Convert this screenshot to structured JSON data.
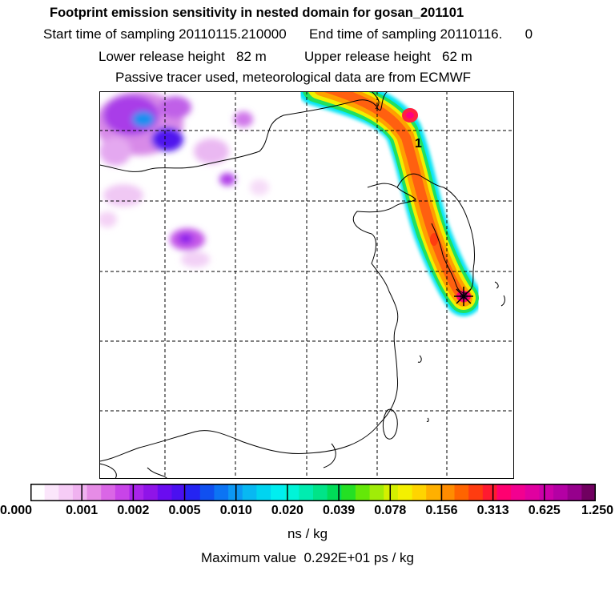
{
  "header": {
    "title": "Footprint emission sensitivity in nested domain for gosan_201101",
    "sampling": "Start time of sampling 20110115.210000      End time of sampling 20110116.      0",
    "release": "Lower release height   82 m          Upper release height   62 m",
    "tracer": "Passive tracer used, meteorological data are from ECMWF"
  },
  "map": {
    "plume_label": "1",
    "release_marker": "asterisk-icon",
    "grid": true
  },
  "colorbar": {
    "tick_labels": [
      "0.000",
      "0.001",
      "0.002",
      "0.005",
      "0.010",
      "0.020",
      "0.039",
      "0.078",
      "0.156",
      "0.313",
      "0.625",
      "1.250"
    ],
    "colors": [
      "#ffffff",
      "#fbe6fb",
      "#f6ccf6",
      "#f0b2f0",
      "#e68ce6",
      "#da66e6",
      "#c844e8",
      "#a924ea",
      "#8f14e8",
      "#6a0cf0",
      "#4a10f0",
      "#2424f2",
      "#1050f0",
      "#0c74f4",
      "#0c98f4",
      "#08b8f2",
      "#00d4f0",
      "#00eef0",
      "#00f4d8",
      "#00ecb0",
      "#00e488",
      "#00dc58",
      "#24e024",
      "#64e808",
      "#a0ec08",
      "#d4f000",
      "#f4f000",
      "#ffd400",
      "#ffb000",
      "#ff8c00",
      "#ff6400",
      "#ff3c10",
      "#ff1a30",
      "#ff0070",
      "#f20090",
      "#e000a0",
      "#cc00a8",
      "#b400a4",
      "#96008c",
      "#700060"
    ],
    "units": "ns / kg"
  },
  "footer": {
    "max_value": "Maximum value  0.292E+01 ps / kg"
  }
}
